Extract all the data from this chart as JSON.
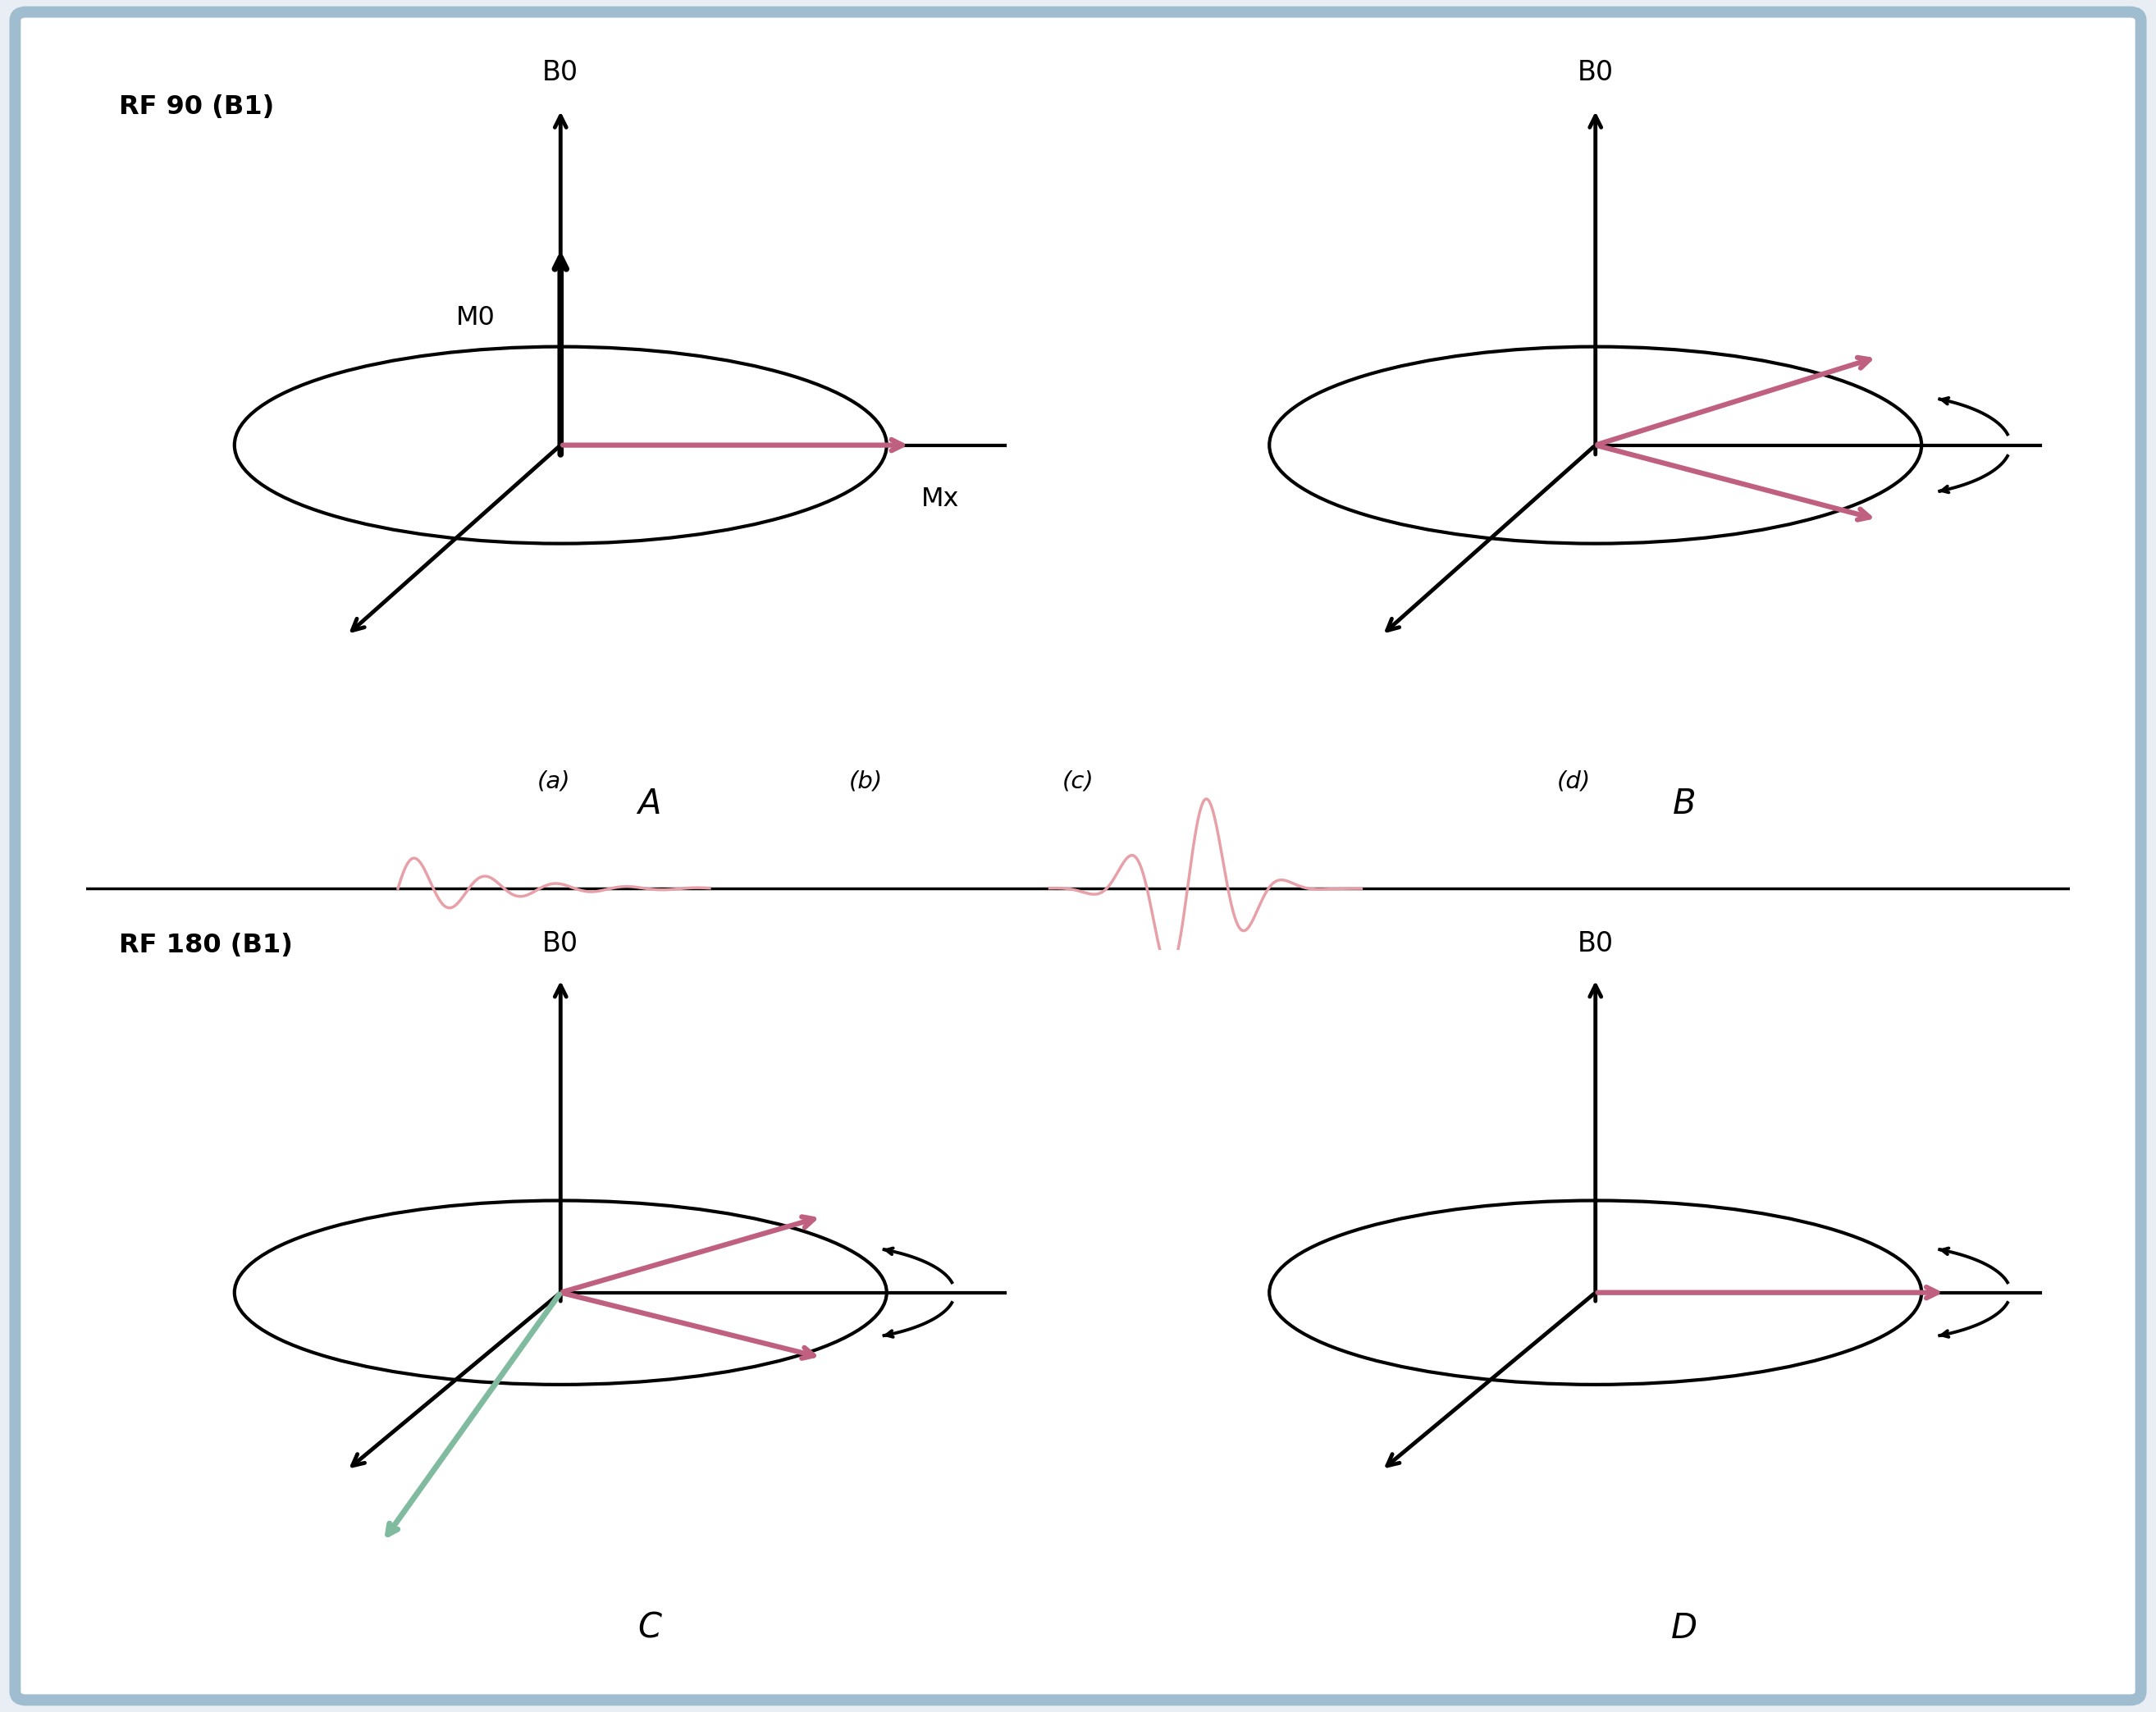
{
  "bg_color": "#e8eef4",
  "panel_bg": "#ffffff",
  "border_color": "#a0bdd0",
  "mag_color": "#c06080",
  "green_mag_color": "#80bba0",
  "signal_color": "#e8a0a8",
  "label_A": "A",
  "label_B": "B",
  "label_C": "C",
  "label_D": "D",
  "label_rf90": "RF 90 (B1)",
  "label_rf180": "RF 180 (B1)",
  "label_B0": "B0",
  "label_M0": "M0",
  "label_Mx": "Mx",
  "label_a": "(a)",
  "label_b": "(b)",
  "label_c": "(c)",
  "label_d": "(d)"
}
